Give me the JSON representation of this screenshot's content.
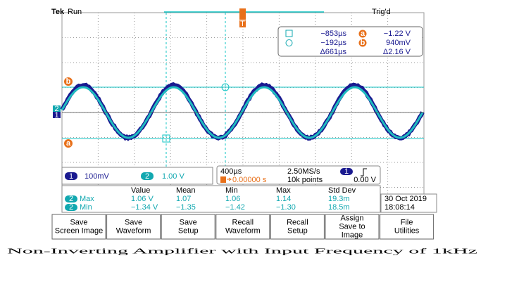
{
  "header": {
    "brand": "Tek",
    "status": "Run",
    "trigger_state": "Trig'd"
  },
  "markers": {
    "trigger": "T",
    "cursor_b": "b",
    "cursor_a": "a",
    "ch2": "2",
    "ch1": "1"
  },
  "cursor_readout": {
    "time_a": "−853µs",
    "level_a": "−1.22 V",
    "marker_a": "a",
    "time_b": "−192µs",
    "level_b": "940mV",
    "marker_b": "b",
    "delta_time": "Δ661µs",
    "delta_level": "Δ2.16 V"
  },
  "channels": [
    {
      "number": "1",
      "scale": "100mV"
    },
    {
      "number": "2",
      "scale": "1.00 V"
    }
  ],
  "timebase": {
    "scale": "400µs",
    "sample_rate": "2.50MS/s",
    "trigger_offset": "0.00000 s",
    "record_length": "10k points",
    "trigger_channel": "1",
    "trigger_level": "0.00 V"
  },
  "measurements": {
    "headers": [
      "Value",
      "Mean",
      "Min",
      "Max",
      "Std Dev"
    ],
    "rows": [
      {
        "channel": "2",
        "label": "Max",
        "values": [
          "1.06 V",
          "1.07",
          "1.06",
          "1.14",
          "19.3m"
        ]
      },
      {
        "channel": "2",
        "label": "Min",
        "values": [
          "−1.34 V",
          "−1.35",
          "−1.42",
          "−1.30",
          "18.5m"
        ]
      }
    ]
  },
  "datetime": {
    "date": "30 Oct  2019",
    "time": "18:08:14"
  },
  "buttons": [
    {
      "lines": [
        "Save",
        "Screen Image"
      ]
    },
    {
      "lines": [
        "Save",
        "Waveform"
      ]
    },
    {
      "lines": [
        "Save",
        "Setup"
      ]
    },
    {
      "lines": [
        "Recall",
        "Waveform"
      ]
    },
    {
      "lines": [
        "Recall",
        "Setup"
      ]
    },
    {
      "lines": [
        "Assign",
        "Save to",
        "Image"
      ]
    },
    {
      "lines": [
        "File",
        "Utilities"
      ]
    }
  ],
  "caption": "Non-Inverting Amplifier with Input Frequency of 1kHz"
}
